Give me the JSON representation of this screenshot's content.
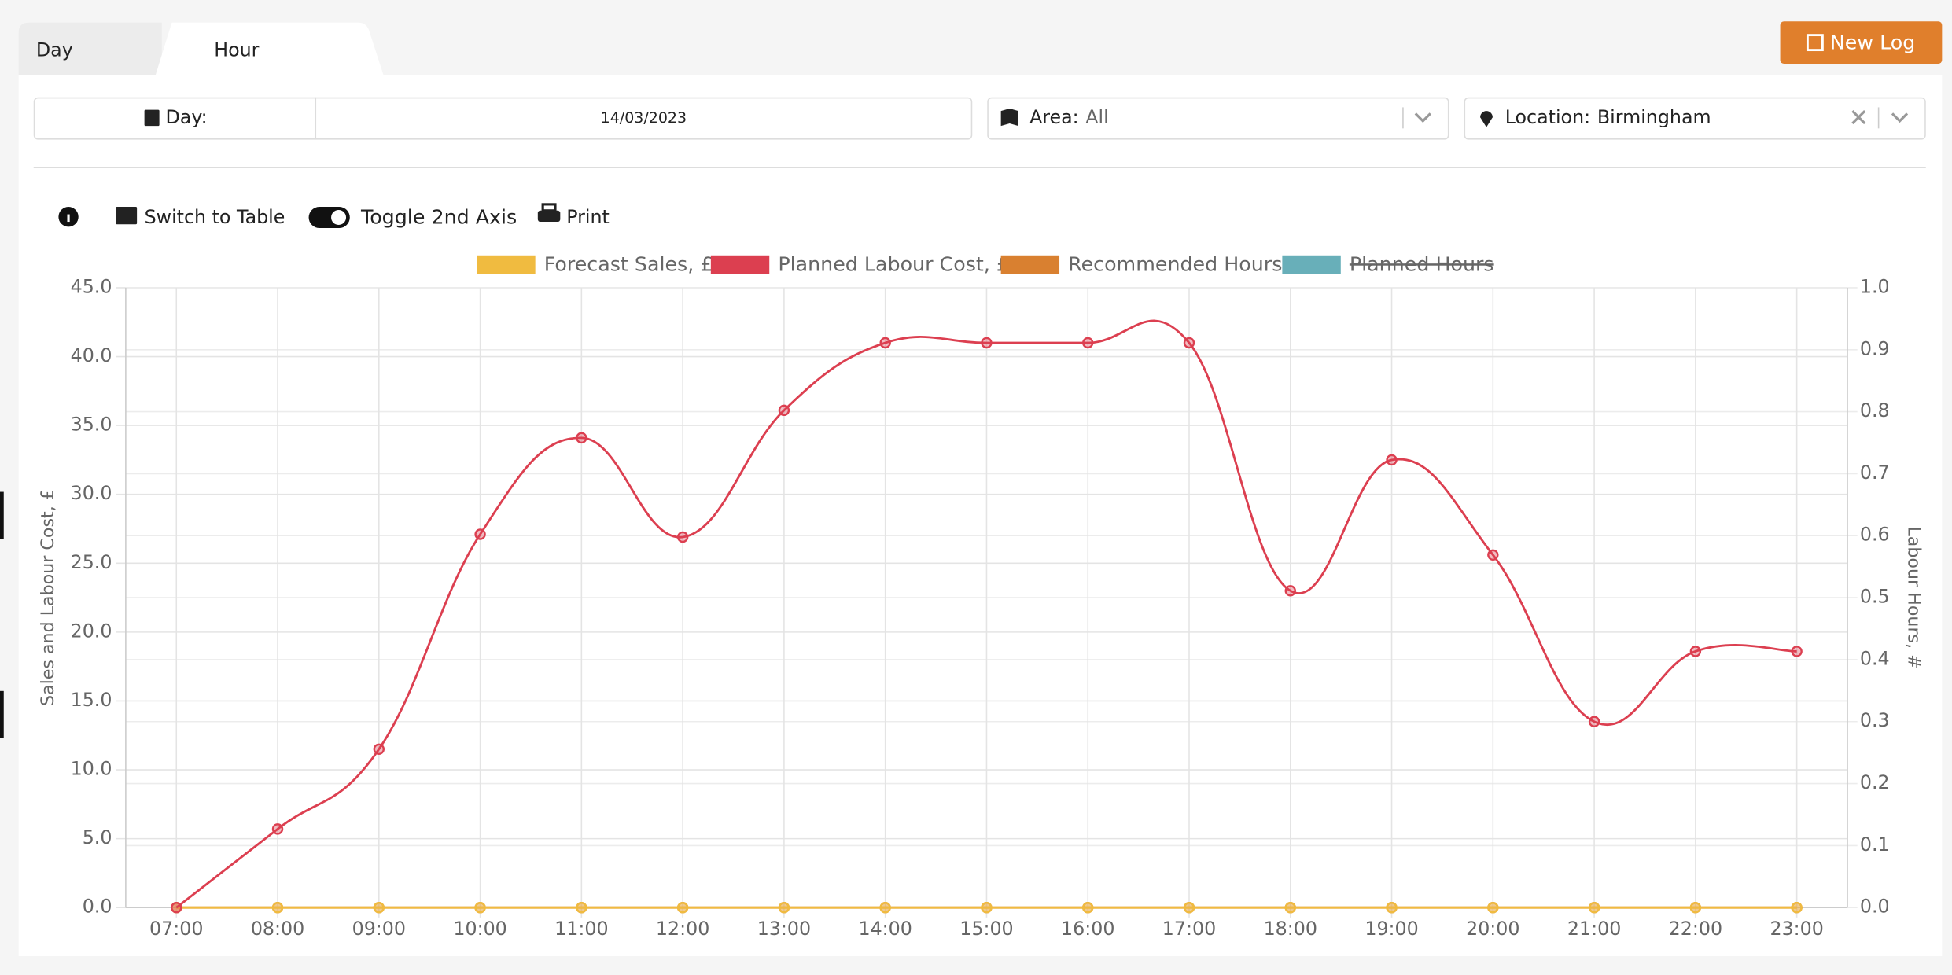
{
  "tabs": [
    "Day",
    "Hour"
  ],
  "new_log": "New Log",
  "filters": {
    "day_label": "Day:",
    "date": "14/03/2023",
    "area_label": "Area:",
    "area_value": "All",
    "location_label": "Location:",
    "location_value": "Birmingham"
  },
  "toolbar": {
    "switch": "Switch to Table",
    "toggle": "Toggle 2nd Axis",
    "print": "Print"
  },
  "chart_data": {
    "type": "line",
    "ylabel": "Sales and Labour Cost, £",
    "y2label": "Labour Hours, #",
    "categories": [
      "07:00",
      "08:00",
      "09:00",
      "10:00",
      "11:00",
      "12:00",
      "13:00",
      "14:00",
      "15:00",
      "16:00",
      "17:00",
      "18:00",
      "19:00",
      "20:00",
      "21:00",
      "22:00",
      "23:00"
    ],
    "series": [
      {
        "name": "Forecast Sales, £",
        "color": "#f0bb40",
        "values": [
          0,
          0,
          0,
          0,
          0,
          0,
          0,
          0,
          0,
          0,
          0,
          0,
          0,
          0,
          0,
          0,
          0
        ]
      },
      {
        "name": "Planned Labour Cost, £",
        "color": "#dc3f50",
        "values": [
          0,
          5.7,
          11.5,
          27.1,
          34.1,
          26.9,
          36.1,
          41.0,
          41.0,
          41.0,
          41.0,
          23.0,
          32.5,
          25.6,
          13.5,
          18.6,
          18.6
        ]
      },
      {
        "name": "Recommended Hours",
        "color": "#d98030",
        "axis": "y2",
        "values": [
          0,
          0,
          0,
          0,
          0,
          0,
          0,
          0,
          0,
          0,
          0,
          0,
          0,
          0,
          0,
          0,
          0
        ]
      },
      {
        "name": "Planned Hours",
        "color": "#68afb9",
        "axis": "y2",
        "hidden": true,
        "values": [
          null,
          null,
          null,
          null,
          null,
          null,
          null,
          null,
          null,
          null,
          null,
          null,
          null,
          null,
          null,
          null,
          null
        ]
      }
    ],
    "ylim": [
      0,
      45
    ],
    "yticks": [
      {
        "value": 0,
        "label": "0.0"
      },
      {
        "value": 5,
        "label": "5.0"
      },
      {
        "value": 10,
        "label": "10.0"
      },
      {
        "value": 15,
        "label": "15.0"
      },
      {
        "value": 20,
        "label": "20.0"
      },
      {
        "value": 25,
        "label": "25.0"
      },
      {
        "value": 30,
        "label": "30.0"
      },
      {
        "value": 35,
        "label": "35.0"
      },
      {
        "value": 40,
        "label": "40.0"
      },
      {
        "value": 45,
        "label": "45.0"
      }
    ],
    "y2lim": [
      0,
      1
    ],
    "y2ticks": [
      {
        "value": 0,
        "label": "0.0"
      },
      {
        "value": 0.1,
        "label": "0.1"
      },
      {
        "value": 0.2,
        "label": "0.2"
      },
      {
        "value": 0.3,
        "label": "0.3"
      },
      {
        "value": 0.4,
        "label": "0.4"
      },
      {
        "value": 0.5,
        "label": "0.5"
      },
      {
        "value": 0.6,
        "label": "0.6"
      },
      {
        "value": 0.7,
        "label": "0.7"
      },
      {
        "value": 0.8,
        "label": "0.8"
      },
      {
        "value": 0.9,
        "label": "0.9"
      },
      {
        "value": 1,
        "label": "1.0"
      }
    ],
    "grid": true,
    "legend": "top"
  }
}
